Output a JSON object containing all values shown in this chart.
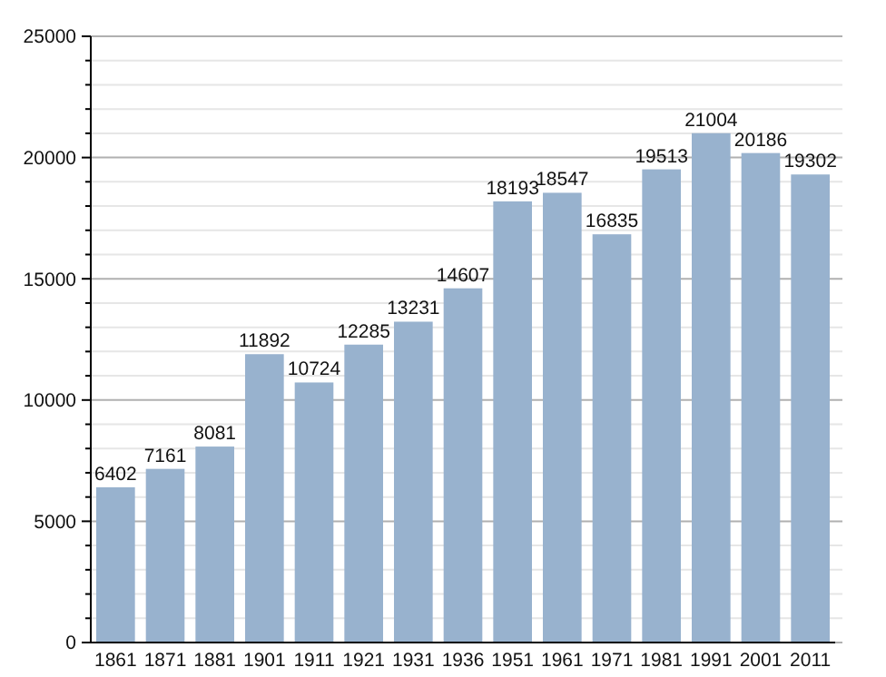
{
  "chart_data": {
    "type": "bar",
    "categories": [
      "1861",
      "1871",
      "1881",
      "1901",
      "1911",
      "1921",
      "1931",
      "1936",
      "1951",
      "1961",
      "1971",
      "1981",
      "1991",
      "2001",
      "2011"
    ],
    "values": [
      6402,
      7161,
      8081,
      11892,
      10724,
      12285,
      13231,
      14607,
      18193,
      18547,
      16835,
      19513,
      21004,
      20186,
      19302
    ],
    "color": "#98b2ce",
    "data_labels": true,
    "grid": "y",
    "ylim": [
      0,
      25000
    ],
    "yticks": [
      0,
      {
        "value": 1000,
        "label": null
      },
      {
        "value": 2000,
        "label": null
      },
      {
        "value": 3000,
        "label": null
      },
      {
        "value": 4000,
        "label": null
      },
      5000,
      {
        "value": 6000,
        "label": null
      },
      {
        "value": 7000,
        "label": null
      },
      {
        "value": 8000,
        "label": null
      },
      {
        "value": 9000,
        "label": null
      },
      10000,
      {
        "value": 11000,
        "label": null
      },
      {
        "value": 12000,
        "label": null
      },
      {
        "value": 13000,
        "label": null
      },
      {
        "value": 14000,
        "label": null
      },
      15000,
      {
        "value": 16000,
        "label": null
      },
      {
        "value": 17000,
        "label": null
      },
      {
        "value": 18000,
        "label": null
      },
      {
        "value": 19000,
        "label": null
      },
      20000,
      {
        "value": 21000,
        "label": null
      },
      {
        "value": 22000,
        "label": null
      },
      {
        "value": 23000,
        "label": null
      },
      {
        "value": 24000,
        "label": null
      },
      25000
    ]
  }
}
